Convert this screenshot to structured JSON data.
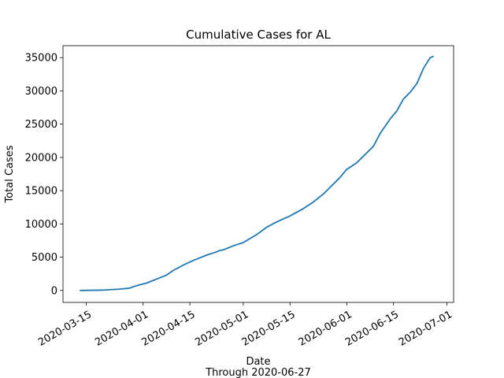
{
  "chart_data": {
    "type": "line",
    "title": "Cumulative Cases for AL",
    "xlabel": "Date",
    "xlabel_sub": "Through 2020-06-27",
    "ylabel": "Total Cases",
    "xlim": [
      "2020-03-08",
      "2020-07-03"
    ],
    "ylim": [
      -1800,
      36800
    ],
    "grid": false,
    "line_color": "#1f77b4",
    "x_ticks": [
      "2020-03-15",
      "2020-04-01",
      "2020-04-15",
      "2020-05-01",
      "2020-05-15",
      "2020-06-01",
      "2020-06-15",
      "2020-07-01"
    ],
    "y_ticks": [
      0,
      5000,
      10000,
      15000,
      20000,
      25000,
      30000,
      35000
    ],
    "series": [
      {
        "x": [
          "2020-03-13",
          "2020-03-20",
          "2020-03-25",
          "2020-03-28",
          "2020-03-29",
          "2020-03-31",
          "2020-04-02",
          "2020-04-05",
          "2020-04-08",
          "2020-04-10",
          "2020-04-13",
          "2020-04-16",
          "2020-04-20",
          "2020-04-23",
          "2020-04-24",
          "2020-04-25",
          "2020-04-28",
          "2020-05-01",
          "2020-05-05",
          "2020-05-08",
          "2020-05-11",
          "2020-05-15",
          "2020-05-19",
          "2020-05-22",
          "2020-05-25",
          "2020-05-27",
          "2020-05-30",
          "2020-06-01",
          "2020-06-04",
          "2020-06-06",
          "2020-06-09",
          "2020-06-11",
          "2020-06-14",
          "2020-06-16",
          "2020-06-18",
          "2020-06-20",
          "2020-06-22",
          "2020-06-24",
          "2020-06-26",
          "2020-06-27"
        ],
        "y": [
          0,
          50,
          200,
          350,
          550,
          850,
          1100,
          1700,
          2300,
          3000,
          3800,
          4500,
          5300,
          5800,
          6000,
          6100,
          6700,
          7200,
          8400,
          9500,
          10300,
          11200,
          12300,
          13300,
          14500,
          15500,
          17000,
          18200,
          19200,
          20200,
          21700,
          23600,
          25800,
          27000,
          28800,
          29800,
          31100,
          33400,
          35000,
          35200
        ]
      }
    ]
  }
}
